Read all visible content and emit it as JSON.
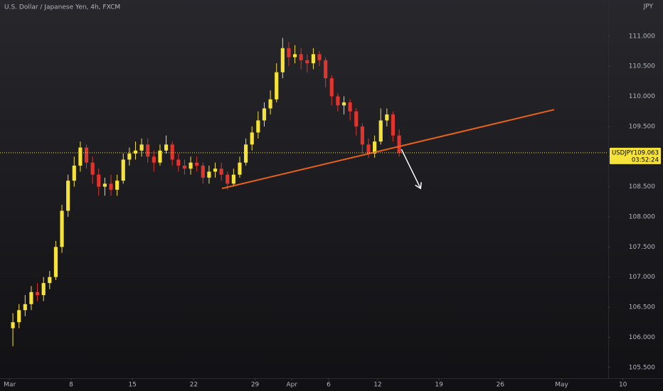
{
  "chart_data": {
    "type": "candlestick",
    "title": "U.S. Dollar / Japanese Yen, 4h, FXCM",
    "currency": "JPY",
    "up_color": "#f5e23a",
    "down_color": "#e0342f",
    "x": [
      0.25,
      0.75,
      1.25,
      1.75,
      2.25,
      2.75,
      3.25,
      3.75,
      4.25,
      4.75,
      5.25,
      5.75,
      6.25,
      6.75,
      7.25,
      7.75,
      8.25,
      8.75,
      9.25,
      9.75,
      10.25,
      10.75,
      11.25,
      11.75,
      12.25,
      12.75,
      13.25,
      13.75,
      14.25,
      14.75,
      15.25,
      15.75,
      16.25,
      16.75,
      17.25,
      17.75,
      18.25,
      18.75,
      19.25,
      19.75,
      20.25,
      20.75,
      21.25,
      21.75,
      22.25,
      22.75,
      23.25,
      23.75,
      24.25,
      24.75,
      25.25,
      25.75,
      26.25,
      26.75,
      27.25,
      27.75,
      28.25,
      28.75,
      29.25,
      29.75,
      30.25,
      30.75,
      31.25,
      31.75
    ],
    "open": [
      106.15,
      106.25,
      106.45,
      106.55,
      106.75,
      106.7,
      106.9,
      107.0,
      107.5,
      108.1,
      108.6,
      108.85,
      109.15,
      108.9,
      108.7,
      108.5,
      108.55,
      108.45,
      108.6,
      108.95,
      109.05,
      109.1,
      109.2,
      109.0,
      108.9,
      109.1,
      109.2,
      108.95,
      108.85,
      108.8,
      108.9,
      108.85,
      108.65,
      108.75,
      108.8,
      108.7,
      108.55,
      108.7,
      108.9,
      109.2,
      109.4,
      109.6,
      109.8,
      109.95,
      110.4,
      110.8,
      110.65,
      110.7,
      110.6,
      110.55,
      110.7,
      110.6,
      110.3,
      110.0,
      109.85,
      109.9,
      109.75,
      109.5,
      109.2,
      109.05,
      109.25,
      109.6,
      109.7,
      109.35
    ],
    "high": [
      106.4,
      106.55,
      106.7,
      106.85,
      106.9,
      107.0,
      107.1,
      107.6,
      108.2,
      108.7,
      109.0,
      109.25,
      109.2,
      109.0,
      108.8,
      108.65,
      108.7,
      108.7,
      109.05,
      109.15,
      109.25,
      109.3,
      109.3,
      109.1,
      109.2,
      109.35,
      109.25,
      109.05,
      108.95,
      109.0,
      109.0,
      108.9,
      108.85,
      108.9,
      108.9,
      108.75,
      108.8,
      109.0,
      109.3,
      109.5,
      109.75,
      109.9,
      110.1,
      110.55,
      110.97,
      110.9,
      110.85,
      110.8,
      110.7,
      110.8,
      110.75,
      110.65,
      110.35,
      110.05,
      110.0,
      109.95,
      109.8,
      109.55,
      109.3,
      109.35,
      109.8,
      109.8,
      109.75,
      109.45
    ],
    "low": [
      105.85,
      106.15,
      106.35,
      106.45,
      106.6,
      106.6,
      106.8,
      106.95,
      107.4,
      108.0,
      108.5,
      108.75,
      108.8,
      108.55,
      108.35,
      108.35,
      108.35,
      108.35,
      108.55,
      108.85,
      108.95,
      109.0,
      108.9,
      108.75,
      108.85,
      109.05,
      108.85,
      108.75,
      108.7,
      108.7,
      108.75,
      108.55,
      108.55,
      108.65,
      108.6,
      108.45,
      108.5,
      108.65,
      108.85,
      109.1,
      109.3,
      109.5,
      109.7,
      109.9,
      110.3,
      110.5,
      110.55,
      110.45,
      110.4,
      110.45,
      110.5,
      110.15,
      109.85,
      109.75,
      109.7,
      109.6,
      109.35,
      109.05,
      108.98,
      108.98,
      109.2,
      109.5,
      109.25,
      109.0
    ],
    "close": [
      106.25,
      106.45,
      106.55,
      106.75,
      106.7,
      106.9,
      107.0,
      107.5,
      108.1,
      108.6,
      108.85,
      109.15,
      108.9,
      108.7,
      108.5,
      108.55,
      108.45,
      108.6,
      108.95,
      109.05,
      109.1,
      109.2,
      109.0,
      108.9,
      109.1,
      109.2,
      108.95,
      108.85,
      108.8,
      108.9,
      108.85,
      108.65,
      108.75,
      108.8,
      108.7,
      108.55,
      108.7,
      108.9,
      109.2,
      109.4,
      109.6,
      109.8,
      109.95,
      110.4,
      110.8,
      110.65,
      110.7,
      110.6,
      110.55,
      110.7,
      110.6,
      110.3,
      110.0,
      109.85,
      109.9,
      109.75,
      109.5,
      109.2,
      109.05,
      109.25,
      109.6,
      109.7,
      109.35,
      109.063
    ],
    "xlim": [
      -0.8,
      48.8
    ],
    "xticks": [
      {
        "value": 0,
        "label": "Mar"
      },
      {
        "value": 5,
        "label": "8"
      },
      {
        "value": 10,
        "label": "15"
      },
      {
        "value": 15,
        "label": "22"
      },
      {
        "value": 20,
        "label": "29"
      },
      {
        "value": 23,
        "label": "Apr"
      },
      {
        "value": 26,
        "label": "6"
      },
      {
        "value": 30,
        "label": "12"
      },
      {
        "value": 35,
        "label": "19"
      },
      {
        "value": 40,
        "label": "26"
      },
      {
        "value": 45,
        "label": "May"
      },
      {
        "value": 50,
        "label": "10"
      }
    ],
    "ylim": [
      105.32,
      111.6
    ],
    "yticks": [
      {
        "value": 105.5,
        "label": "105.500"
      },
      {
        "value": 106,
        "label": "106.000"
      },
      {
        "value": 106.5,
        "label": "106.500"
      },
      {
        "value": 107,
        "label": "107.000"
      },
      {
        "value": 107.5,
        "label": "107.500"
      },
      {
        "value": 108,
        "label": "108.000"
      },
      {
        "value": 108.5,
        "label": "108.500"
      },
      {
        "value": 109,
        "label": "109.000"
      },
      {
        "value": 109.5,
        "label": "109.500"
      },
      {
        "value": 110,
        "label": "110.000"
      },
      {
        "value": 110.5,
        "label": "110.500"
      },
      {
        "value": 111,
        "label": "111.000"
      }
    ],
    "trendline": {
      "x": [
        17.3,
        44.4
      ],
      "y": [
        108.47,
        109.78
      ],
      "color": "#e8621c"
    },
    "arrow": {
      "x": [
        31.94,
        33.5
      ],
      "y": [
        109.12,
        108.47
      ],
      "color": "#ffffff"
    },
    "price_tag": {
      "symbol": "USDJPY",
      "value": 109.063,
      "countdown": "03:52:24",
      "color": "#f5e23a"
    }
  }
}
